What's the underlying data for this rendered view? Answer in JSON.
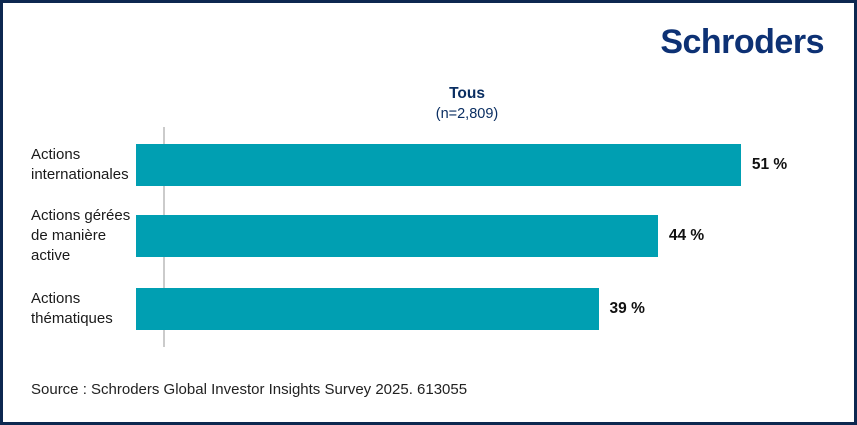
{
  "header": {
    "logo_text": "Schroders"
  },
  "chart_data": {
    "type": "bar",
    "orientation": "horizontal",
    "title": "Tous",
    "subtitle": "(n=2,809)",
    "categories": [
      "Actions internationales",
      "Actions gérées de manière active",
      "Actions thématiques"
    ],
    "values": [
      51,
      44,
      39
    ],
    "value_labels": [
      "51 %",
      "44 %",
      "39 %"
    ],
    "unit": "%",
    "xlim": [
      0,
      58
    ],
    "grid": false,
    "legend": false,
    "bar_color": "#009fb2",
    "axis_line_color": "#cbcbcb",
    "title_color": "#0a2e62",
    "value_label_color": "#111111"
  },
  "footer": {
    "source": "Source : Schroders Global Investor Insights Survey 2025. 613055"
  },
  "colors": {
    "brand_navy": "#0d3174",
    "border_navy": "#0d2850",
    "teal": "#009fb2"
  }
}
